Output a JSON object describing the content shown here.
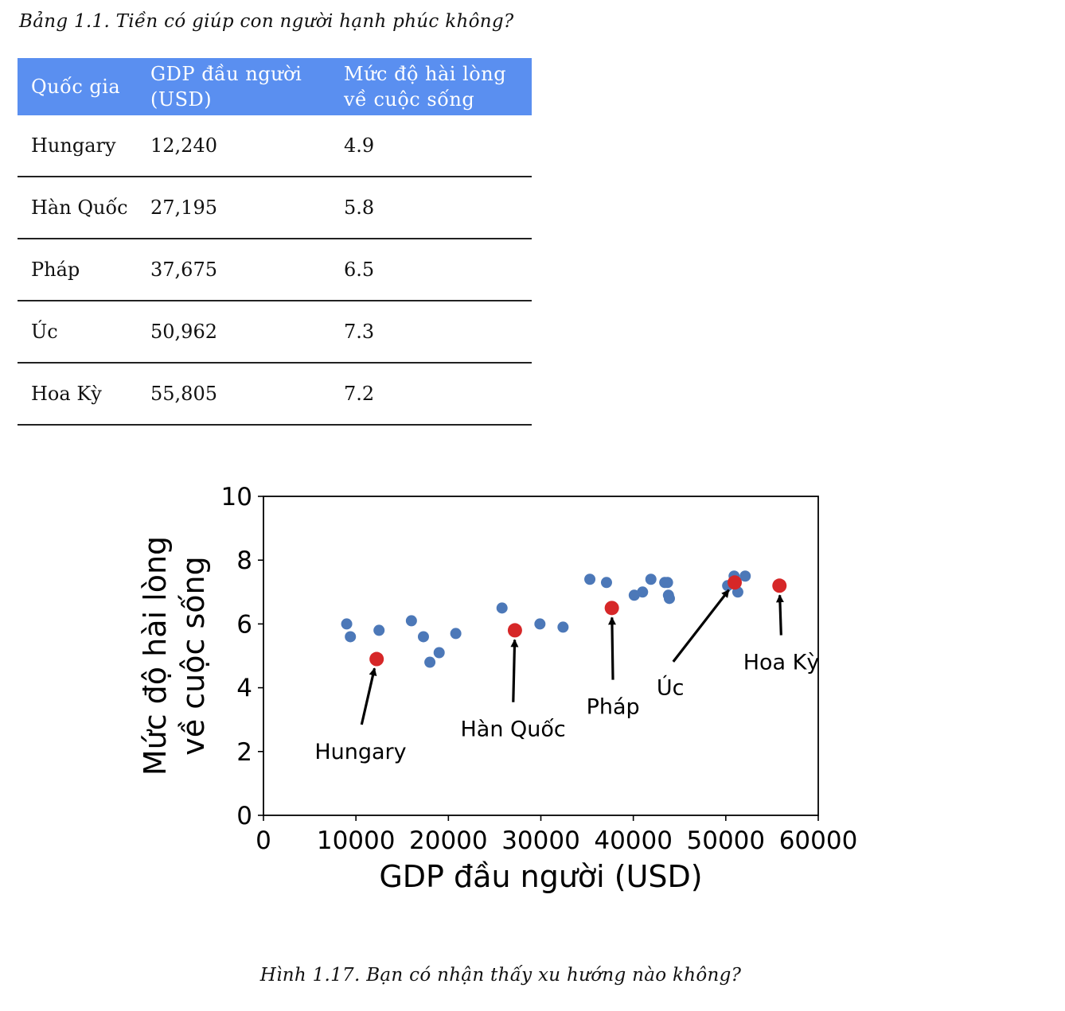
{
  "table_caption": "Bảng 1.1. Tiền có giúp con người hạnh phúc không?",
  "table": {
    "headers": [
      "Quốc gia",
      "GDP đầu người (USD)",
      "Mức độ hài lòng về cuộc sống"
    ],
    "rows": [
      [
        "Hungary",
        "12,240",
        "4.9"
      ],
      [
        "Hàn Quốc",
        "27,195",
        "5.8"
      ],
      [
        "Pháp",
        "37,675",
        "6.5"
      ],
      [
        "Úc",
        "50,962",
        "7.3"
      ],
      [
        "Hoa Kỳ",
        "55,805",
        "7.2"
      ]
    ],
    "header_color": "#5a8ff0"
  },
  "chart_data": {
    "type": "scatter",
    "xlabel": "GDP đầu người (USD)",
    "ylabel_lines": [
      "Mức độ hài lòng",
      "về cuộc sống"
    ],
    "xlim": [
      0,
      60000
    ],
    "ylim": [
      0,
      10
    ],
    "xticks": [
      0,
      10000,
      20000,
      30000,
      40000,
      50000,
      60000
    ],
    "yticks": [
      0,
      2,
      4,
      6,
      8,
      10
    ],
    "grid": false,
    "series": [
      {
        "color": "#4c78b8",
        "points": [
          [
            9000,
            6.0
          ],
          [
            9400,
            5.6
          ],
          [
            12500,
            5.8
          ],
          [
            16000,
            6.1
          ],
          [
            17300,
            5.6
          ],
          [
            18000,
            4.8
          ],
          [
            19000,
            5.1
          ],
          [
            20800,
            5.7
          ],
          [
            25800,
            6.5
          ],
          [
            29900,
            6.0
          ],
          [
            32400,
            5.9
          ],
          [
            35300,
            7.4
          ],
          [
            37100,
            7.3
          ],
          [
            40100,
            6.9
          ],
          [
            41000,
            7.0
          ],
          [
            41900,
            7.4
          ],
          [
            43400,
            7.3
          ],
          [
            43700,
            7.3
          ],
          [
            43800,
            6.9
          ],
          [
            43900,
            6.8
          ],
          [
            50200,
            7.2
          ],
          [
            50900,
            7.5
          ],
          [
            51300,
            7.0
          ],
          [
            52100,
            7.5
          ]
        ]
      },
      {
        "color": "#d62728",
        "points": [
          [
            12240,
            4.9
          ],
          [
            27195,
            5.8
          ],
          [
            37675,
            6.5
          ],
          [
            50962,
            7.3
          ],
          [
            55805,
            7.2
          ]
        ]
      }
    ],
    "annotations": [
      {
        "text": "Hungary",
        "point": [
          12240,
          4.9
        ],
        "text_at": [
          10500,
          2.0
        ]
      },
      {
        "text": "Hàn Quốc",
        "point": [
          27195,
          5.8
        ],
        "text_at": [
          27000,
          2.7
        ]
      },
      {
        "text": "Pháp",
        "point": [
          37675,
          6.5
        ],
        "text_at": [
          37800,
          3.4
        ]
      },
      {
        "text": "Úc",
        "point": [
          50962,
          7.3
        ],
        "text_at": [
          44000,
          4.0
        ]
      },
      {
        "text": "Hoa Kỳ",
        "point": [
          55805,
          7.2
        ],
        "text_at": [
          56000,
          4.8
        ]
      }
    ]
  },
  "figure_caption": "Hình 1.17. Bạn có nhận thấy xu hướng nào không?"
}
